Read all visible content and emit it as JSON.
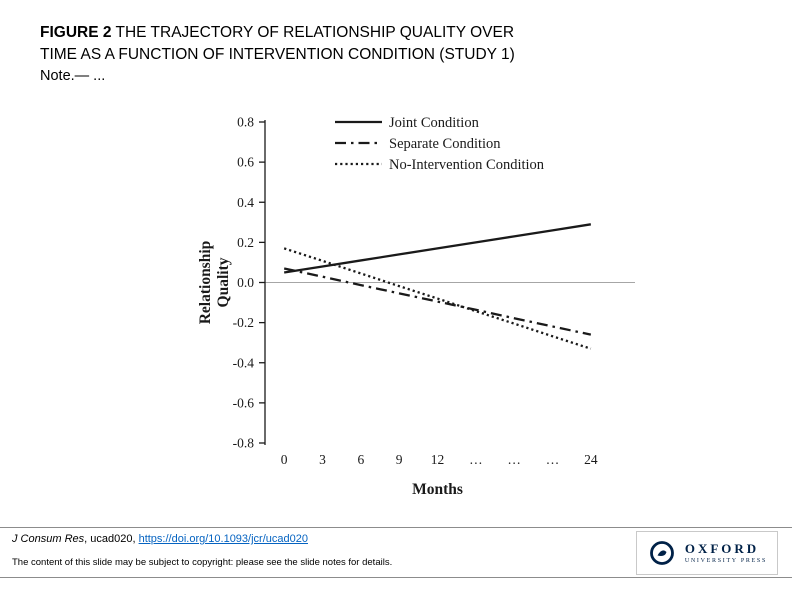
{
  "slide": {
    "figure_label": "FIGURE 2",
    "title": "THE TRAJECTORY OF RELATIONSHIP QUALITY OVER TIME AS A FUNCTION OF INTERVENTION CONDITION (STUDY 1)",
    "note": "Note.— ..."
  },
  "chart_data": {
    "type": "line",
    "title": "",
    "xlabel": "Months",
    "ylabel": "Relationship Quality",
    "categories": [
      "0",
      "3",
      "6",
      "9",
      "12",
      "…",
      "…",
      "…",
      "24"
    ],
    "y_ticks": [
      "0.8",
      "0.6",
      "0.4",
      "0.2",
      "0.0",
      "-0.2",
      "-0.4",
      "-0.6",
      "-0.8"
    ],
    "ylim": [
      -0.8,
      0.8
    ],
    "grid": false,
    "legend_position": "top-inside",
    "line_color": "#1a1a1a",
    "zero_line_color": "#a6a6a6",
    "series": [
      {
        "name": "Joint Condition",
        "style": "solid",
        "values": [
          0.05,
          0.08,
          0.11,
          0.14,
          0.17,
          0.2,
          0.23,
          0.26,
          0.29
        ]
      },
      {
        "name": "Separate Condition",
        "style": "dash-dot",
        "values": [
          0.07,
          0.029,
          -0.013,
          -0.054,
          -0.095,
          -0.136,
          -0.178,
          -0.219,
          -0.26
        ]
      },
      {
        "name": "No-Intervention Condition",
        "style": "dotted",
        "values": [
          0.17,
          0.108,
          0.045,
          -0.018,
          -0.08,
          -0.143,
          -0.205,
          -0.268,
          -0.33
        ]
      }
    ]
  },
  "footer": {
    "journal": "J Consum Res",
    "article_id": ", ucad020, ",
    "doi_link": "https://doi.org/10.1093/jcr/ucad020",
    "link_color": "#0563C1",
    "copyright": "The content of this slide may be subject to copyright: please see the slide notes for details."
  },
  "logo": {
    "name": "OXFORD",
    "subtitle": "UNIVERSITY PRESS",
    "color": "#002147"
  }
}
